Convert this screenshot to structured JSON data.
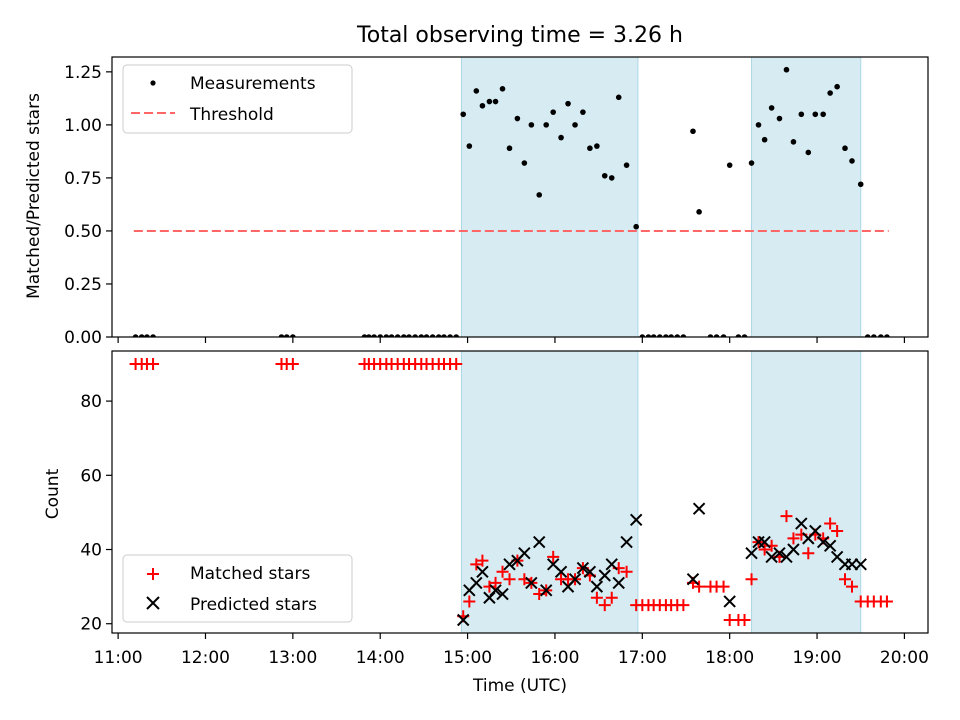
{
  "title": "Total observing time = 3.26 h",
  "chart_data": [
    {
      "type": "scatter",
      "ylabel": "Matched/Predicted stars",
      "xlabel": "",
      "xlim": [
        10.93,
        20.27
      ],
      "ylim": [
        0,
        1.32
      ],
      "yticks": [
        0,
        0.25,
        0.5,
        0.75,
        1.0,
        1.25
      ],
      "ytick_labels": [
        "0.00",
        "0.25",
        "0.50",
        "0.75",
        "1.00",
        "1.25"
      ],
      "legend_position": "upper-left",
      "series": [
        {
          "name": "Measurements",
          "marker": "dot",
          "color": "#000000",
          "x": [
            11.2,
            11.27,
            11.33,
            11.4,
            12.87,
            12.93,
            13.0,
            13.82,
            13.87,
            13.93,
            14.0,
            14.07,
            14.13,
            14.2,
            14.27,
            14.33,
            14.4,
            14.47,
            14.53,
            14.6,
            14.67,
            14.73,
            14.8,
            14.87,
            14.95,
            15.02,
            15.1,
            15.17,
            15.25,
            15.32,
            15.4,
            15.48,
            15.57,
            15.65,
            15.73,
            15.82,
            15.9,
            15.98,
            16.07,
            16.15,
            16.23,
            16.32,
            16.4,
            16.48,
            16.57,
            16.65,
            16.73,
            16.82,
            16.93,
            17.0,
            17.07,
            17.13,
            17.2,
            17.27,
            17.33,
            17.4,
            17.47,
            17.58,
            17.65,
            17.78,
            17.85,
            17.93,
            18.0,
            18.1,
            18.17,
            18.25,
            18.33,
            18.4,
            18.48,
            18.57,
            18.65,
            18.73,
            18.82,
            18.9,
            18.98,
            19.07,
            19.15,
            19.23,
            19.32,
            19.4,
            19.5,
            19.58,
            19.65,
            19.73,
            19.8
          ],
          "y": [
            0,
            0,
            0,
            0,
            0,
            0,
            0,
            0,
            0,
            0,
            0,
            0,
            0,
            0,
            0,
            0,
            0,
            0,
            0,
            0,
            0,
            0,
            0,
            0,
            1.05,
            0.9,
            1.16,
            1.09,
            1.11,
            1.11,
            1.17,
            0.89,
            1.03,
            0.82,
            1.0,
            0.67,
            1.0,
            1.06,
            0.94,
            1.1,
            1.0,
            1.06,
            0.89,
            0.9,
            0.76,
            0.75,
            1.13,
            0.81,
            0.52,
            0,
            0,
            0,
            0,
            0,
            0,
            0,
            0,
            0.97,
            0.59,
            0,
            0,
            0,
            0.81,
            0,
            0,
            0.82,
            1.0,
            0.93,
            1.08,
            1.03,
            1.26,
            0.92,
            1.05,
            0.87,
            1.05,
            1.05,
            1.15,
            1.18,
            0.89,
            0.83,
            0.72,
            0,
            0,
            0,
            0
          ]
        },
        {
          "name": "Threshold",
          "line_style": "dashed",
          "color": "#ff6666",
          "x": [
            11.18,
            19.82
          ],
          "y": [
            0.5,
            0.5
          ]
        }
      ],
      "shaded_regions": [
        [
          14.93,
          16.95
        ],
        [
          18.25,
          19.5
        ]
      ]
    },
    {
      "type": "scatter",
      "ylabel": "Count",
      "xlabel": "Time (UTC)",
      "xlim": [
        10.93,
        20.27
      ],
      "ylim": [
        17.5,
        93.5
      ],
      "yticks": [
        20,
        40,
        60,
        80
      ],
      "ytick_labels": [
        "20",
        "40",
        "60",
        "80"
      ],
      "xticks": [
        11,
        12,
        13,
        14,
        15,
        16,
        17,
        18,
        19,
        20
      ],
      "xtick_labels": [
        "11:00",
        "12:00",
        "13:00",
        "14:00",
        "15:00",
        "16:00",
        "17:00",
        "18:00",
        "19:00",
        "20:00"
      ],
      "legend_position": "lower-left",
      "series": [
        {
          "name": "Matched stars",
          "marker": "plus",
          "color": "#ff0000",
          "x": [
            11.2,
            11.27,
            11.33,
            11.4,
            12.87,
            12.93,
            13.0,
            13.82,
            13.87,
            13.93,
            14.0,
            14.07,
            14.13,
            14.2,
            14.27,
            14.33,
            14.4,
            14.47,
            14.53,
            14.6,
            14.67,
            14.73,
            14.8,
            14.87,
            14.95,
            15.02,
            15.1,
            15.17,
            15.25,
            15.32,
            15.4,
            15.48,
            15.57,
            15.65,
            15.73,
            15.82,
            15.9,
            15.98,
            16.07,
            16.15,
            16.23,
            16.32,
            16.4,
            16.48,
            16.57,
            16.65,
            16.73,
            16.82,
            16.93,
            17.0,
            17.07,
            17.13,
            17.2,
            17.27,
            17.33,
            17.4,
            17.47,
            17.58,
            17.65,
            17.78,
            17.85,
            17.93,
            18.0,
            18.1,
            18.17,
            18.25,
            18.33,
            18.4,
            18.48,
            18.57,
            18.65,
            18.73,
            18.82,
            18.9,
            18.98,
            19.07,
            19.15,
            19.23,
            19.32,
            19.4,
            19.5,
            19.58,
            19.65,
            19.73,
            19.8
          ],
          "y": [
            90,
            90,
            90,
            90,
            90,
            90,
            90,
            90,
            90,
            90,
            90,
            90,
            90,
            90,
            90,
            90,
            90,
            90,
            90,
            90,
            90,
            90,
            90,
            90,
            22,
            26,
            36,
            37,
            30,
            31,
            34,
            32,
            37,
            32,
            31,
            28,
            29,
            38,
            32,
            32,
            32,
            35,
            33,
            27,
            25,
            27,
            35,
            34,
            25,
            25,
            25,
            25,
            25,
            25,
            25,
            25,
            25,
            31,
            30,
            30,
            30,
            30,
            21,
            21,
            21,
            32,
            42,
            40,
            41,
            38,
            49,
            43,
            44,
            39,
            44,
            43,
            47,
            45,
            32,
            30,
            26,
            26,
            26,
            26,
            26
          ]
        },
        {
          "name": "Predicted stars",
          "marker": "x",
          "color": "#000000",
          "x": [
            14.95,
            15.02,
            15.1,
            15.17,
            15.25,
            15.32,
            15.4,
            15.48,
            15.57,
            15.65,
            15.73,
            15.82,
            15.9,
            15.98,
            16.07,
            16.15,
            16.23,
            16.32,
            16.4,
            16.48,
            16.57,
            16.65,
            16.73,
            16.82,
            16.93,
            17.58,
            17.65,
            18.0,
            18.25,
            18.33,
            18.4,
            18.48,
            18.57,
            18.65,
            18.73,
            18.82,
            18.9,
            18.98,
            19.07,
            19.15,
            19.23,
            19.32,
            19.4,
            19.5
          ],
          "y": [
            21,
            29,
            31,
            34,
            27,
            29,
            28,
            36,
            37,
            39,
            31,
            42,
            29,
            36,
            34,
            30,
            32,
            35,
            34,
            30,
            33,
            36,
            31,
            42,
            48,
            32,
            51,
            26,
            39,
            42,
            42,
            38,
            39,
            38,
            40,
            47,
            43,
            45,
            42,
            41,
            38,
            36,
            36,
            36
          ]
        }
      ],
      "shaded_regions": [
        [
          14.93,
          16.95
        ],
        [
          18.25,
          19.5
        ]
      ]
    }
  ]
}
